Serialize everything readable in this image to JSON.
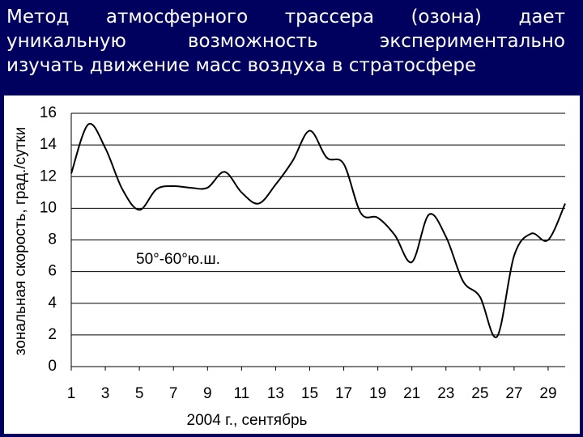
{
  "chart_data": {
    "type": "line",
    "title_lines": [
      "Метод атмосферного трассера (озона) дает",
      "уникальную возможность экспериментально",
      "изучать движение масс воздуха в стратосфере"
    ],
    "x_label": "2004 г., сентябрь",
    "y_label": "зональная скорость, град./сутки",
    "annotation": "50°-60°ю.ш.",
    "x": [
      1,
      2,
      3,
      4,
      5,
      6,
      7,
      8,
      9,
      10,
      11,
      12,
      13,
      14,
      15,
      16,
      17,
      18,
      19,
      20,
      21,
      22,
      23,
      24,
      25,
      26,
      27,
      28,
      29,
      30
    ],
    "series": [
      {
        "color": "#000000",
        "values": [
          12.2,
          15.3,
          13.8,
          11.2,
          9.9,
          11.2,
          11.4,
          11.3,
          11.3,
          12.3,
          11.0,
          10.3,
          11.5,
          13.0,
          14.9,
          13.2,
          12.8,
          9.7,
          9.4,
          8.3,
          6.6,
          9.6,
          8.2,
          5.4,
          4.4,
          1.9,
          7.0,
          8.4,
          8.0,
          10.3
        ]
      }
    ],
    "xlim": [
      1,
      30
    ],
    "xticks": [
      1,
      3,
      5,
      7,
      9,
      11,
      13,
      15,
      17,
      19,
      21,
      23,
      25,
      27,
      29
    ],
    "ylim": [
      0,
      16
    ],
    "yticks": [
      0,
      2,
      4,
      6,
      8,
      10,
      12,
      14,
      16
    ],
    "grid": true
  }
}
